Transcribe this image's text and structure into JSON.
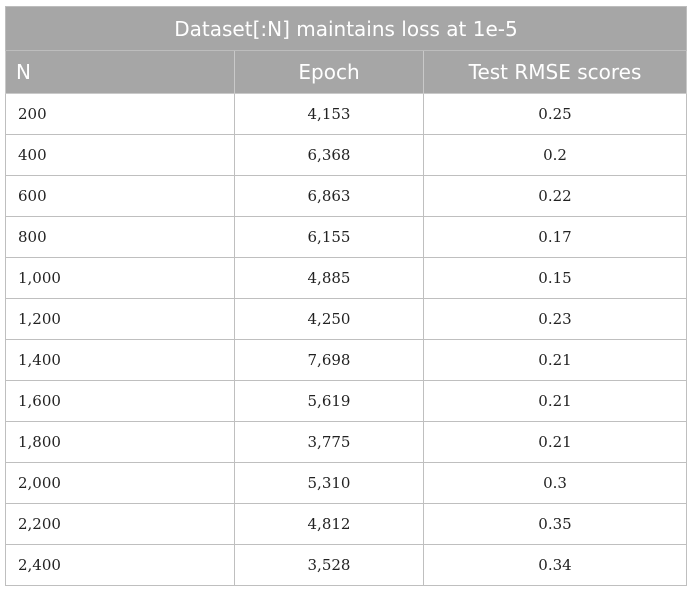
{
  "table": {
    "caption": "Dataset[:N] maintains loss at 1e-5",
    "headers": [
      "N",
      "Epoch",
      "Test RMSE scores"
    ],
    "rows": [
      [
        "200",
        "4,153",
        "0.25"
      ],
      [
        "400",
        "6,368",
        "0.2"
      ],
      [
        "600",
        "6,863",
        "0.22"
      ],
      [
        "800",
        "6,155",
        "0.17"
      ],
      [
        "1,000",
        "4,885",
        "0.15"
      ],
      [
        "1,200",
        "4,250",
        "0.23"
      ],
      [
        "1,400",
        "7,698",
        "0.21"
      ],
      [
        "1,600",
        "5,619",
        "0.21"
      ],
      [
        "1,800",
        "3,775",
        "0.21"
      ],
      [
        "2,000",
        "5,310",
        "0.3"
      ],
      [
        "2,200",
        "4,812",
        "0.35"
      ],
      [
        "2,400",
        "3,528",
        "0.34"
      ]
    ]
  },
  "colors": {
    "header_background": "#a6a6a6",
    "header_text": "#ffffff",
    "border": "#bfbfbf",
    "body_text": "#222222"
  }
}
